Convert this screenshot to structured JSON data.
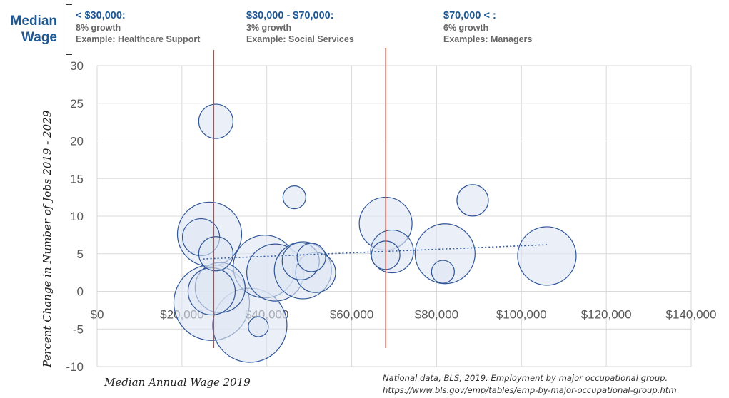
{
  "header": {
    "title_line1": "Median",
    "title_line2": "Wage",
    "bands": [
      {
        "head": "< $30,000:",
        "growth": "8% growth",
        "example": "Example: Healthcare Support"
      },
      {
        "head": "$30,000 - $70,000:",
        "growth": "3% growth",
        "example": "Example: Social Services"
      },
      {
        "head": "$70,000 < :",
        "growth": "6% growth",
        "example": "Examples: Managers"
      }
    ]
  },
  "chart_data": {
    "type": "scatter",
    "subtype": "bubble",
    "title": "",
    "xlabel": "Median Annual Wage 2019",
    "ylabel": "Percent Change in Number of Jobs 2019 - 2029",
    "xlim": [
      0,
      140000
    ],
    "ylim": [
      -10,
      30
    ],
    "x_ticks": [
      "$0",
      "$20,000",
      "$40,000",
      "$60,000",
      "$80,000",
      "$100,000",
      "$120,000",
      "$140,000"
    ],
    "y_ticks": [
      "-10",
      "-5",
      "0",
      "5",
      "10",
      "15",
      "20",
      "25",
      "30"
    ],
    "grid": true,
    "bubble_fill": "#dde6f4",
    "bubble_stroke": "#2f5597",
    "trendline_color": "#2f5597",
    "divider_color": "#e03c28",
    "dividers_x": [
      27500,
      68000
    ],
    "points": [
      {
        "x": 28000,
        "y": 22.6,
        "size": 24
      },
      {
        "x": 46500,
        "y": 12.5,
        "size": 16
      },
      {
        "x": 88500,
        "y": 12.1,
        "size": 22
      },
      {
        "x": 26500,
        "y": 7.6,
        "size": 45
      },
      {
        "x": 24500,
        "y": 7.2,
        "size": 26
      },
      {
        "x": 28000,
        "y": 5.0,
        "size": 24
      },
      {
        "x": 68000,
        "y": 9.0,
        "size": 37
      },
      {
        "x": 69500,
        "y": 5.3,
        "size": 30
      },
      {
        "x": 68000,
        "y": 4.8,
        "size": 20
      },
      {
        "x": 82000,
        "y": 5.0,
        "size": 42
      },
      {
        "x": 81500,
        "y": 2.6,
        "size": 16
      },
      {
        "x": 106000,
        "y": 4.7,
        "size": 41
      },
      {
        "x": 39500,
        "y": 3.3,
        "size": 44
      },
      {
        "x": 42000,
        "y": 2.5,
        "size": 40
      },
      {
        "x": 48000,
        "y": 4.0,
        "size": 26
      },
      {
        "x": 50500,
        "y": 4.5,
        "size": 20
      },
      {
        "x": 51500,
        "y": 2.5,
        "size": 28
      },
      {
        "x": 48500,
        "y": 2.8,
        "size": 40
      },
      {
        "x": 27000,
        "y": 0.0,
        "size": 33
      },
      {
        "x": 29000,
        "y": 0.5,
        "size": 35
      },
      {
        "x": 27000,
        "y": -1.5,
        "size": 53
      },
      {
        "x": 36000,
        "y": -4.5,
        "size": 52
      },
      {
        "x": 38000,
        "y": -4.7,
        "size": 14
      }
    ],
    "trendline": {
      "x": [
        25000,
        106000
      ],
      "y": [
        4.3,
        6.2
      ]
    }
  },
  "footer": {
    "source_line1": "National data, BLS, 2019. Employment by major occupational group.",
    "source_line2": "https://www.bls.gov/emp/tables/emp-by-major-occupational-group.htm"
  }
}
